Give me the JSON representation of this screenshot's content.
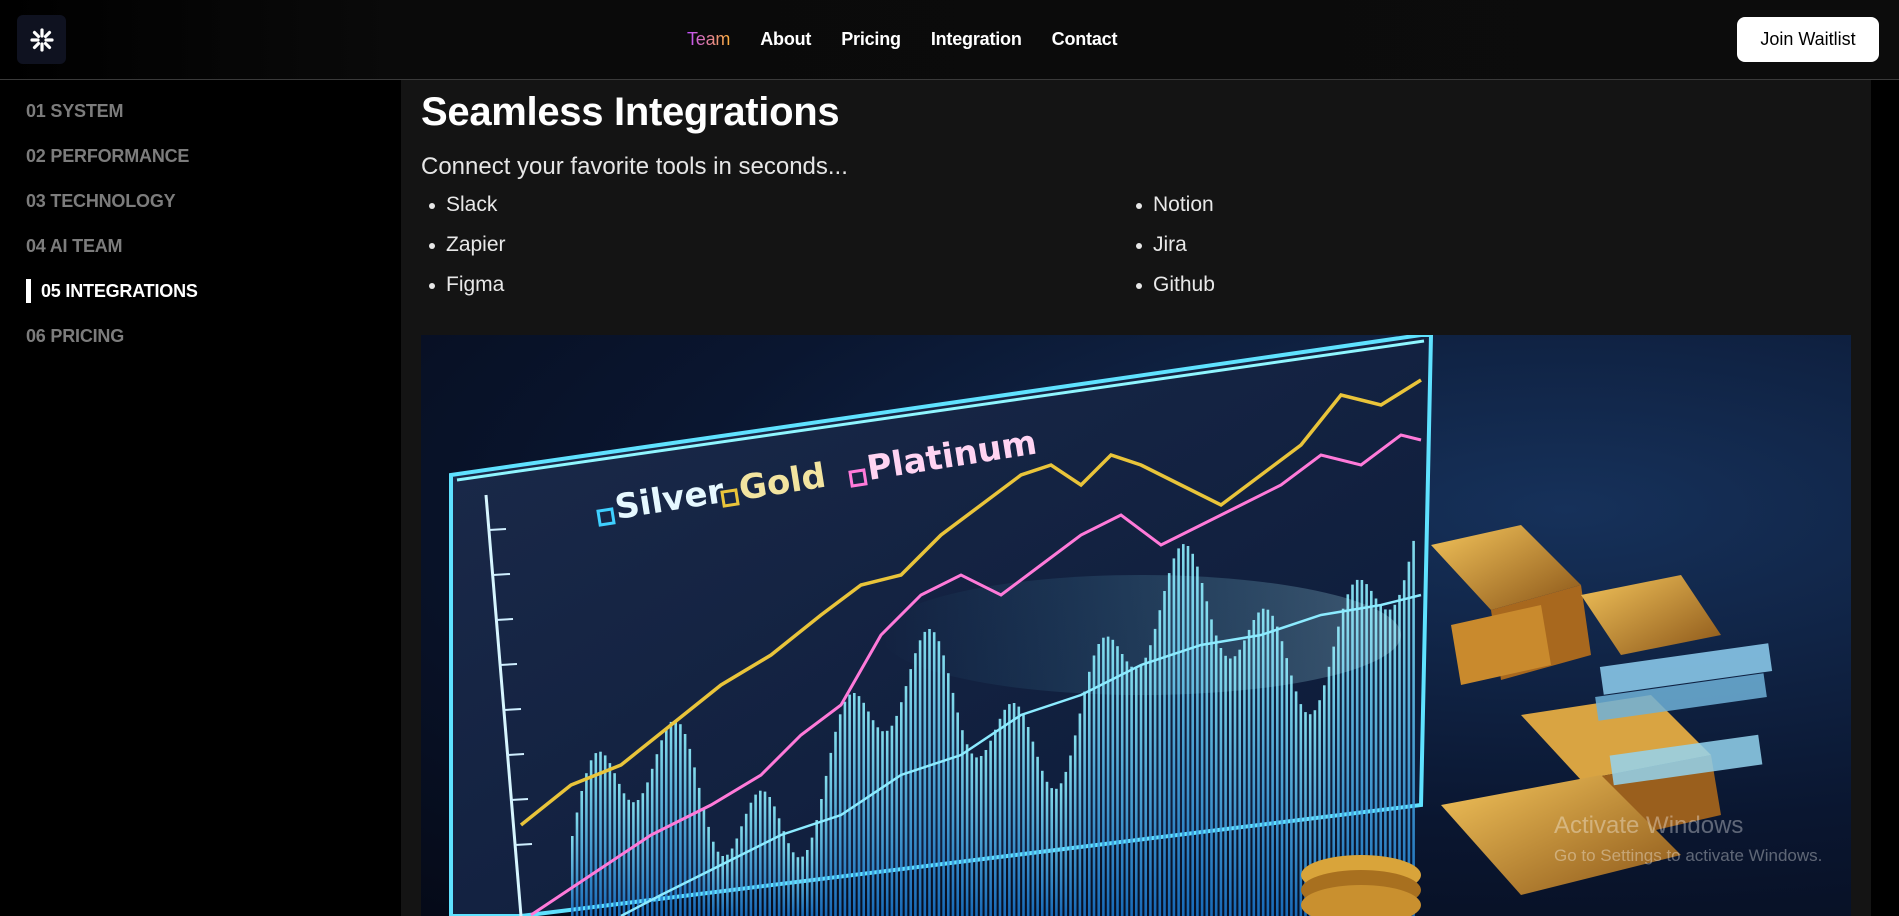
{
  "header": {
    "nav": [
      {
        "label": "Team",
        "active": true
      },
      {
        "label": "About",
        "active": false
      },
      {
        "label": "Pricing",
        "active": false
      },
      {
        "label": "Integration",
        "active": false
      },
      {
        "label": "Contact",
        "active": false
      }
    ],
    "cta_label": "Join Waitlist"
  },
  "sidebar": {
    "items": [
      {
        "label": "01 SYSTEM"
      },
      {
        "label": "02 PERFORMANCE"
      },
      {
        "label": "03 TECHNOLOGY"
      },
      {
        "label": "04 AI TEAM"
      },
      {
        "label": "05 INTEGRATIONS",
        "active": true
      },
      {
        "label": "06 PRICING"
      }
    ]
  },
  "main": {
    "title": "Seamless Integrations",
    "subtitle": "Connect your favorite tools in seconds...",
    "tools": [
      "Slack",
      "Notion",
      "Zapier",
      "Jira",
      "Figma",
      "Github"
    ],
    "hero": {
      "legend": [
        "Silver",
        "Gold",
        "Platinum"
      ],
      "colors": {
        "silver": "#3fd0ff",
        "gold": "#e9c43a",
        "platinum": "#ff7ad9"
      }
    }
  },
  "watermark": {
    "line1": "Activate Windows",
    "line2": "Go to Settings to activate Windows."
  }
}
